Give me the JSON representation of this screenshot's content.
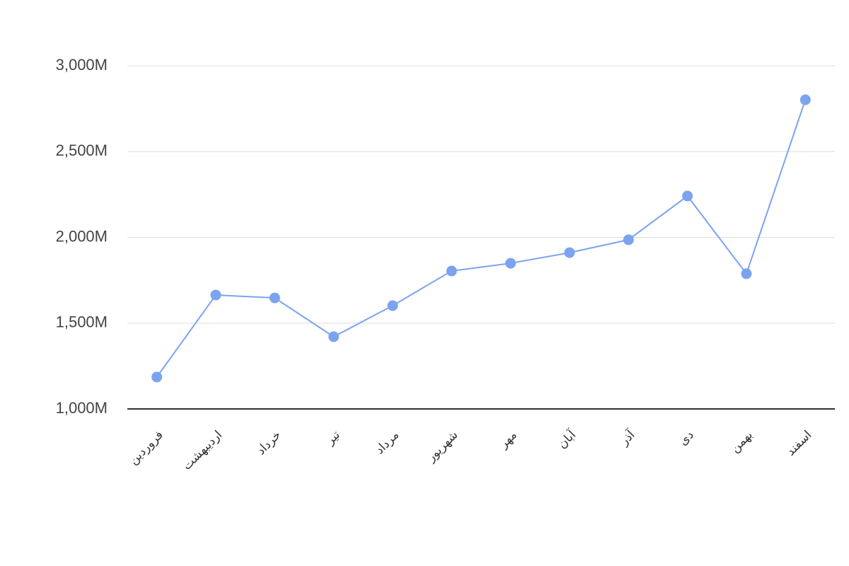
{
  "chart_data": {
    "type": "line",
    "categories": [
      "فروردین",
      "اردیبهشت",
      "خرداد",
      "تیر",
      "مرداد",
      "شهریور",
      "مهر",
      "آبان",
      "آذر",
      "دی",
      "بهمن",
      "اسفند"
    ],
    "series": [
      {
        "color": "#7ba3ef",
        "values": [
          1186,
          1664,
          1647,
          1421,
          1602,
          1804,
          1849,
          1911,
          1986,
          2241,
          1788,
          2802
        ]
      }
    ],
    "ylim": [
      1000,
      3000
    ],
    "yticks": [
      {
        "value": 1000,
        "label": "1,000M"
      },
      {
        "value": 1500,
        "label": "1,500M"
      },
      {
        "value": 2000,
        "label": "2,000M"
      },
      {
        "value": 2500,
        "label": "2,500M"
      },
      {
        "value": 3000,
        "label": "3,000M"
      }
    ],
    "grid": true
  }
}
